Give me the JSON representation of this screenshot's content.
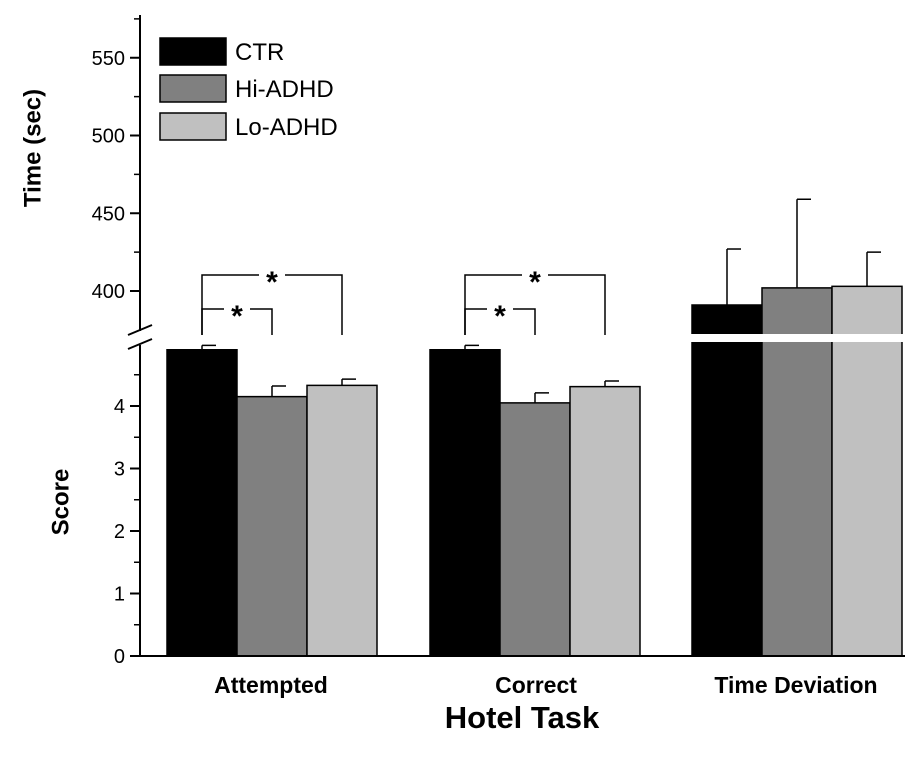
{
  "chart_data": {
    "type": "bar",
    "xlabel": "Hotel Task",
    "categories": [
      "Attempted",
      "Correct",
      "Time Deviation"
    ],
    "legend_placement": "top-left",
    "colors": {
      "CTR": "#000000",
      "Hi-ADHD": "#808080",
      "Lo-ADHD": "#c0c0c0"
    },
    "series": [
      {
        "name": "CTR",
        "values": [
          4.9,
          4.9,
          391
        ],
        "errors": [
          0.07,
          0.07,
          36
        ]
      },
      {
        "name": "Hi-ADHD",
        "values": [
          4.15,
          4.05,
          402
        ],
        "errors": [
          0.17,
          0.16,
          57
        ]
      },
      {
        "name": "Lo-ADHD",
        "values": [
          4.33,
          4.31,
          403
        ],
        "errors": [
          0.1,
          0.09,
          22
        ]
      }
    ],
    "score_axis": {
      "label": "Score",
      "ylim": [
        0,
        4.9
      ],
      "ticks": [
        "0",
        "1",
        "2",
        "3",
        "4"
      ],
      "applies_to": [
        "Attempted",
        "Correct"
      ]
    },
    "time_axis": {
      "label": "Time (sec)",
      "ylim": [
        372,
        570
      ],
      "ticks": [
        "400",
        "450",
        "500",
        "550"
      ],
      "applies_to": [
        "Time Deviation"
      ]
    },
    "axis_break": true,
    "significance": [
      {
        "category": "Attempted",
        "pair": [
          "CTR",
          "Hi-ADHD"
        ],
        "label": "*"
      },
      {
        "category": "Attempted",
        "pair": [
          "CTR",
          "Lo-ADHD"
        ],
        "label": "*"
      },
      {
        "category": "Correct",
        "pair": [
          "CTR",
          "Hi-ADHD"
        ],
        "label": "*"
      },
      {
        "category": "Correct",
        "pair": [
          "CTR",
          "Lo-ADHD"
        ],
        "label": "*"
      }
    ]
  }
}
